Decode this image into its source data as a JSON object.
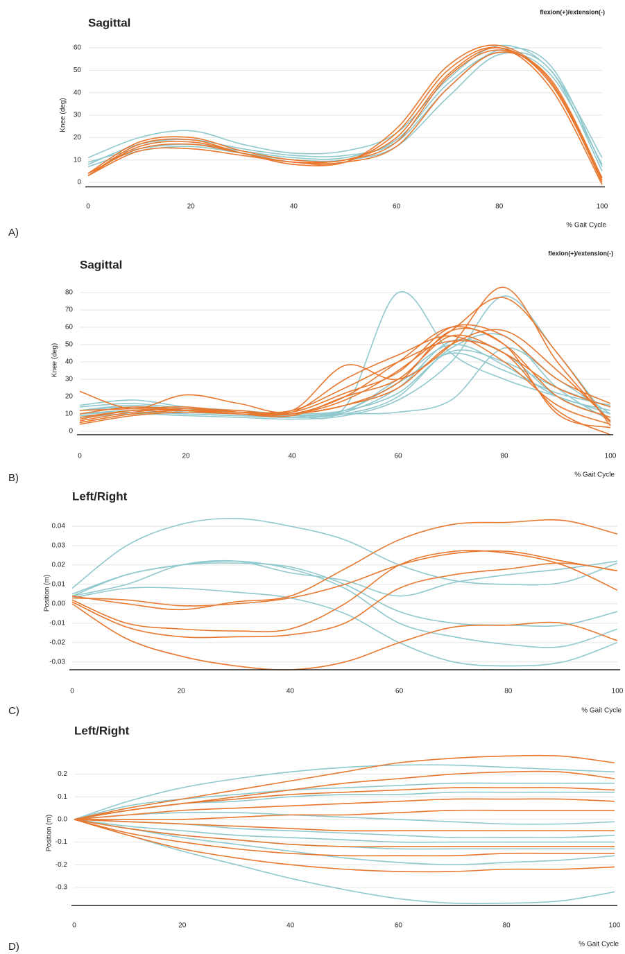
{
  "chart_data": [
    {
      "type": "line",
      "panel_label": "A)",
      "title": "Sagittal",
      "annotation": "flexion(+)/extension(-)",
      "ylabel": "Knee (deg)",
      "xlabel": "% Gait Cycle",
      "xlim": [
        0,
        100
      ],
      "xticks": [
        0,
        20,
        40,
        60,
        80,
        100
      ],
      "ylim": [
        -2,
        62
      ],
      "yticks": [
        0,
        10,
        20,
        30,
        40,
        50,
        60
      ],
      "grid": true,
      "x": [
        0,
        10,
        20,
        30,
        40,
        50,
        60,
        70,
        80,
        90,
        100
      ],
      "series": [
        {
          "color": "#8fc8cd",
          "values": [
            11,
            20,
            23,
            17,
            13,
            14,
            22,
            46,
            61,
            50,
            11
          ]
        },
        {
          "color": "#8fc8cd",
          "values": [
            8,
            17,
            19,
            15,
            12,
            12,
            18,
            42,
            59,
            52,
            7
          ]
        },
        {
          "color": "#8fc8cd",
          "values": [
            9,
            15,
            17,
            14,
            11,
            11,
            19,
            44,
            58,
            48,
            8
          ]
        },
        {
          "color": "#8fc8cd",
          "values": [
            7,
            14,
            16,
            13,
            10,
            10,
            16,
            38,
            57,
            50,
            5
          ]
        },
        {
          "color": "#e8782f",
          "values": [
            3,
            17,
            19,
            13,
            9,
            9,
            24,
            52,
            61,
            45,
            2
          ]
        },
        {
          "color": "#e8782f",
          "values": [
            4,
            18,
            20,
            14,
            10,
            10,
            20,
            48,
            60,
            44,
            1
          ]
        },
        {
          "color": "#e8782f",
          "values": [
            3,
            14,
            15,
            12,
            9,
            9,
            16,
            42,
            58,
            46,
            2
          ]
        },
        {
          "color": "#e8782f",
          "values": [
            4,
            15,
            17,
            13,
            9,
            10,
            18,
            47,
            59,
            45,
            0
          ]
        },
        {
          "color": "#e8782f",
          "values": [
            3,
            16,
            18,
            13,
            8,
            9,
            22,
            50,
            60,
            42,
            -1
          ]
        }
      ]
    },
    {
      "type": "line",
      "panel_label": "B)",
      "title": "Sagittal",
      "annotation": "flexion(+)/extension(-)",
      "ylabel": "Knee (deg)",
      "xlabel": "% Gait Cycle",
      "xlim": [
        0,
        100
      ],
      "xticks": [
        0,
        20,
        40,
        60,
        80,
        100
      ],
      "ylim": [
        -2,
        84
      ],
      "yticks": [
        0,
        10,
        20,
        30,
        40,
        50,
        60,
        70,
        80
      ],
      "grid": true,
      "x": [
        0,
        10,
        20,
        30,
        40,
        50,
        60,
        70,
        80,
        90,
        100
      ],
      "series": [
        {
          "color": "#8fc8cd",
          "values": [
            12,
            15,
            12,
            10,
            9,
            14,
            80,
            45,
            30,
            20,
            10
          ]
        },
        {
          "color": "#8fc8cd",
          "values": [
            15,
            18,
            14,
            12,
            10,
            12,
            22,
            46,
            40,
            25,
            14
          ]
        },
        {
          "color": "#8fc8cd",
          "values": [
            10,
            12,
            10,
            9,
            8,
            11,
            25,
            52,
            45,
            20,
            8
          ]
        },
        {
          "color": "#8fc8cd",
          "values": [
            8,
            10,
            9,
            8,
            7,
            9,
            18,
            40,
            78,
            45,
            5
          ]
        },
        {
          "color": "#8fc8cd",
          "values": [
            12,
            14,
            11,
            10,
            9,
            10,
            11,
            18,
            48,
            30,
            10
          ]
        },
        {
          "color": "#8fc8cd",
          "values": [
            10,
            11,
            10,
            9,
            9,
            12,
            28,
            45,
            35,
            22,
            15
          ]
        },
        {
          "color": "#8fc8cd",
          "values": [
            9,
            10,
            11,
            10,
            8,
            10,
            20,
            48,
            55,
            25,
            6
          ]
        },
        {
          "color": "#8fc8cd",
          "values": [
            14,
            16,
            13,
            11,
            9,
            12,
            30,
            50,
            38,
            20,
            12
          ]
        },
        {
          "color": "#e8782f",
          "values": [
            23,
            13,
            21,
            16,
            12,
            38,
            30,
            50,
            83,
            40,
            5
          ]
        },
        {
          "color": "#e8782f",
          "values": [
            5,
            10,
            12,
            11,
            10,
            18,
            35,
            58,
            77,
            45,
            3
          ]
        },
        {
          "color": "#e8782f",
          "values": [
            8,
            12,
            12,
            10,
            10,
            20,
            40,
            60,
            50,
            20,
            8
          ]
        },
        {
          "color": "#e8782f",
          "values": [
            6,
            11,
            13,
            12,
            11,
            30,
            44,
            55,
            40,
            15,
            4
          ]
        },
        {
          "color": "#e8782f",
          "values": [
            10,
            14,
            12,
            10,
            9,
            20,
            30,
            55,
            45,
            25,
            14
          ]
        },
        {
          "color": "#e8782f",
          "values": [
            4,
            9,
            11,
            10,
            10,
            15,
            28,
            58,
            50,
            10,
            2
          ]
        },
        {
          "color": "#e8782f",
          "values": [
            7,
            12,
            13,
            11,
            11,
            22,
            34,
            60,
            55,
            30,
            16
          ]
        },
        {
          "color": "#e8782f",
          "values": [
            12,
            13,
            14,
            11,
            10,
            15,
            25,
            50,
            58,
            35,
            6
          ]
        },
        {
          "color": "#e8782f",
          "values": [
            5,
            10,
            12,
            11,
            12,
            25,
            40,
            52,
            45,
            12,
            -2
          ]
        }
      ]
    },
    {
      "type": "line",
      "panel_label": "C)",
      "title": "Left/Right",
      "ylabel": "Position (m)",
      "xlabel": "% Gait Cycle",
      "xlim": [
        0,
        100
      ],
      "xticks": [
        0,
        20,
        40,
        60,
        80,
        100
      ],
      "ylim": [
        -0.034,
        0.045
      ],
      "yticks": [
        -0.03,
        -0.02,
        -0.01,
        {
          "value": 0,
          "label": "0.00"
        },
        0.01,
        0.02,
        0.03,
        0.04
      ],
      "grid": true,
      "x": [
        0,
        10,
        20,
        30,
        40,
        50,
        60,
        70,
        80,
        90,
        100
      ],
      "series": [
        {
          "color": "#8fc8cd",
          "values": [
            0.008,
            0.03,
            0.041,
            0.044,
            0.04,
            0.033,
            0.02,
            0.012,
            0.01,
            0.011,
            0.021
          ]
        },
        {
          "color": "#8fc8cd",
          "values": [
            0.004,
            0.015,
            0.02,
            0.021,
            0.019,
            0.01,
            -0.004,
            -0.01,
            -0.011,
            -0.011,
            -0.004
          ]
        },
        {
          "color": "#8fc8cd",
          "values": [
            0.005,
            0.015,
            0.02,
            0.022,
            0.018,
            0.008,
            -0.01,
            -0.017,
            -0.021,
            -0.022,
            -0.013
          ]
        },
        {
          "color": "#8fc8cd",
          "values": [
            0.003,
            0.008,
            0.008,
            0.006,
            0.003,
            -0.005,
            -0.02,
            -0.03,
            -0.032,
            -0.03,
            -0.02
          ]
        },
        {
          "color": "#8fc8cd",
          "values": [
            0.004,
            0.01,
            0.02,
            0.022,
            0.016,
            0.012,
            0.004,
            0.011,
            0.015,
            0.018,
            0.022
          ]
        },
        {
          "color": "#e8782f",
          "values": [
            0.004,
            0.0,
            -0.003,
            0.001,
            0.004,
            0.018,
            0.033,
            0.041,
            0.042,
            0.043,
            0.036
          ]
        },
        {
          "color": "#e8782f",
          "values": [
            0.002,
            -0.01,
            -0.013,
            -0.014,
            -0.013,
            0.0,
            0.02,
            0.027,
            0.026,
            0.02,
            0.007
          ]
        },
        {
          "color": "#e8782f",
          "values": [
            0.001,
            -0.012,
            -0.017,
            -0.017,
            -0.016,
            -0.01,
            0.008,
            0.015,
            0.018,
            0.021,
            0.017
          ]
        },
        {
          "color": "#e8782f",
          "values": [
            0.0,
            -0.018,
            -0.027,
            -0.032,
            -0.034,
            -0.03,
            -0.02,
            -0.012,
            -0.011,
            -0.01,
            -0.019
          ]
        },
        {
          "color": "#e8782f",
          "values": [
            0.003,
            0.002,
            -0.001,
            0.0,
            0.003,
            0.01,
            0.02,
            0.026,
            0.027,
            0.022,
            0.017
          ]
        }
      ]
    },
    {
      "type": "line",
      "panel_label": "D)",
      "title": "Left/Right",
      "ylabel": "Position (m)",
      "xlabel": "% Gait Cycle",
      "xlim": [
        0,
        100
      ],
      "xticks": [
        0,
        20,
        40,
        60,
        80,
        100
      ],
      "ylim": [
        -0.38,
        0.26
      ],
      "yticks": [
        -0.3,
        -0.2,
        -0.1,
        {
          "value": 0,
          "label": "0.0"
        },
        0.1,
        0.2
      ],
      "grid": true,
      "x": [
        0,
        10,
        20,
        30,
        40,
        50,
        60,
        70,
        80,
        90,
        100
      ],
      "series": [
        {
          "color": "#8fc8cd",
          "values": [
            0,
            0.08,
            0.14,
            0.18,
            0.21,
            0.23,
            0.24,
            0.24,
            0.23,
            0.22,
            0.21
          ]
        },
        {
          "color": "#8fc8cd",
          "values": [
            0,
            0.06,
            0.09,
            0.11,
            0.13,
            0.14,
            0.15,
            0.16,
            0.16,
            0.16,
            0.16
          ]
        },
        {
          "color": "#8fc8cd",
          "values": [
            0,
            0.04,
            0.07,
            0.08,
            0.1,
            0.11,
            0.11,
            0.12,
            0.12,
            0.12,
            0.12
          ]
        },
        {
          "color": "#8fc8cd",
          "values": [
            0,
            0.02,
            0.03,
            0.03,
            0.02,
            0.01,
            0.0,
            -0.01,
            -0.02,
            -0.02,
            -0.01
          ]
        },
        {
          "color": "#8fc8cd",
          "values": [
            0,
            -0.01,
            -0.02,
            -0.04,
            -0.05,
            -0.06,
            -0.07,
            -0.08,
            -0.08,
            -0.08,
            -0.07
          ]
        },
        {
          "color": "#8fc8cd",
          "values": [
            0,
            -0.03,
            -0.05,
            -0.07,
            -0.08,
            -0.09,
            -0.1,
            -0.1,
            -0.1,
            -0.1,
            -0.1
          ]
        },
        {
          "color": "#8fc8cd",
          "values": [
            0,
            -0.04,
            -0.07,
            -0.09,
            -0.11,
            -0.12,
            -0.13,
            -0.13,
            -0.13,
            -0.13,
            -0.13
          ]
        },
        {
          "color": "#8fc8cd",
          "values": [
            0,
            -0.04,
            -0.08,
            -0.11,
            -0.14,
            -0.17,
            -0.19,
            -0.2,
            -0.19,
            -0.18,
            -0.16
          ]
        },
        {
          "color": "#8fc8cd",
          "values": [
            0,
            -0.07,
            -0.14,
            -0.2,
            -0.26,
            -0.31,
            -0.35,
            -0.37,
            -0.37,
            -0.36,
            -0.32
          ]
        },
        {
          "color": "#e8782f",
          "values": [
            0,
            0.05,
            0.09,
            0.13,
            0.17,
            0.21,
            0.25,
            0.27,
            0.28,
            0.28,
            0.25
          ]
        },
        {
          "color": "#e8782f",
          "values": [
            0,
            0.04,
            0.07,
            0.1,
            0.13,
            0.16,
            0.18,
            0.2,
            0.21,
            0.21,
            0.18
          ]
        },
        {
          "color": "#e8782f",
          "values": [
            0,
            0.04,
            0.07,
            0.09,
            0.11,
            0.12,
            0.13,
            0.14,
            0.14,
            0.14,
            0.13
          ]
        },
        {
          "color": "#e8782f",
          "values": [
            0,
            0.02,
            0.04,
            0.05,
            0.06,
            0.07,
            0.08,
            0.09,
            0.09,
            0.09,
            0.08
          ]
        },
        {
          "color": "#e8782f",
          "values": [
            0,
            0.0,
            0.0,
            0.01,
            0.02,
            0.02,
            0.03,
            0.04,
            0.04,
            0.04,
            0.04
          ]
        },
        {
          "color": "#e8782f",
          "values": [
            0,
            -0.01,
            -0.02,
            -0.03,
            -0.04,
            -0.05,
            -0.05,
            -0.05,
            -0.05,
            -0.05,
            -0.05
          ]
        },
        {
          "color": "#e8782f",
          "values": [
            0,
            -0.04,
            -0.07,
            -0.09,
            -0.11,
            -0.12,
            -0.12,
            -0.12,
            -0.12,
            -0.12,
            -0.12
          ]
        },
        {
          "color": "#e8782f",
          "values": [
            0,
            -0.06,
            -0.1,
            -0.13,
            -0.15,
            -0.16,
            -0.16,
            -0.16,
            -0.15,
            -0.15,
            -0.15
          ]
        },
        {
          "color": "#e8782f",
          "values": [
            0,
            -0.07,
            -0.13,
            -0.17,
            -0.2,
            -0.22,
            -0.23,
            -0.23,
            -0.22,
            -0.22,
            -0.21
          ]
        }
      ]
    }
  ]
}
